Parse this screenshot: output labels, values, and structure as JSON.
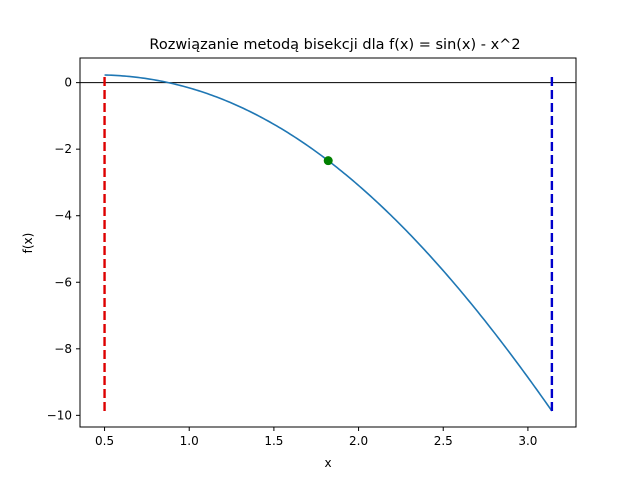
{
  "chart_data": {
    "type": "line",
    "title": "Rozwiązanie metodą bisekcji dla f(x) = sin(x) - x^2",
    "xlabel": "x",
    "ylabel": "f(x)",
    "xlim": [
      0.355,
      3.284
    ],
    "ylim": [
      -10.35,
      0.74
    ],
    "xticks": [
      0.5,
      1.0,
      1.5,
      2.0,
      2.5,
      3.0
    ],
    "xtick_labels": [
      "0.5",
      "1.0",
      "1.5",
      "2.0",
      "2.5",
      "3.0"
    ],
    "yticks": [
      0,
      -2,
      -4,
      -6,
      -8,
      -10
    ],
    "ytick_labels": [
      "0",
      "−2",
      "−4",
      "−6",
      "−8",
      "−10"
    ],
    "grid": false,
    "function": "sin(x) - x^2",
    "curve": {
      "x_range": [
        0.5,
        3.1416
      ],
      "color": "#1f77b4"
    },
    "zero_line": {
      "y": 0,
      "color": "#000000"
    },
    "bounds": [
      {
        "x": 0.5,
        "y_range": [
          -9.87,
          0.23
        ],
        "color": "#dd0000",
        "style": "dashed"
      },
      {
        "x": 3.1416,
        "y_range": [
          -9.87,
          0.23
        ],
        "color": "#0000cc",
        "style": "dashed"
      }
    ],
    "midpoint": {
      "x": 1.8208,
      "y": -2.3452,
      "color": "#008000"
    }
  }
}
